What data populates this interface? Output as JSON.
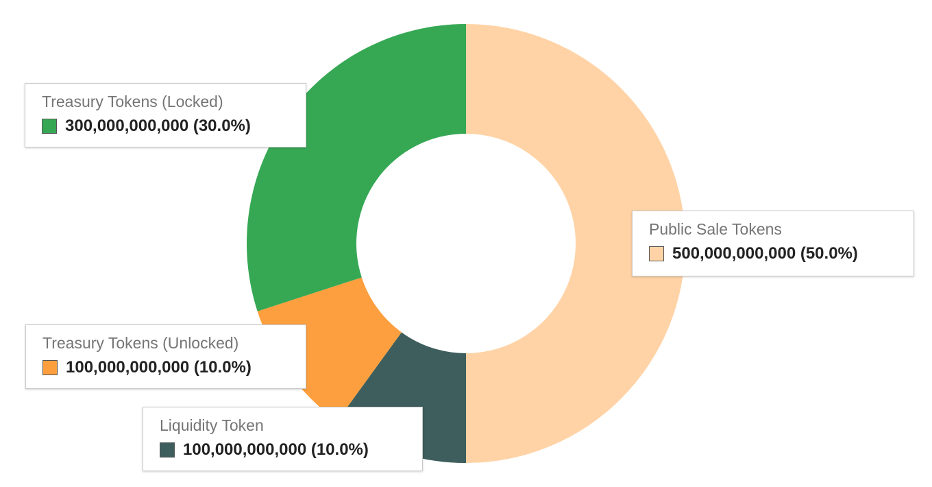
{
  "chart_data": {
    "type": "pie",
    "hole": true,
    "categories": [
      "Public Sale Tokens",
      "Liquidity Token",
      "Treasury Tokens (Unlocked)",
      "Treasury Tokens (Locked)"
    ],
    "values": [
      500000000000,
      100000000000,
      100000000000,
      300000000000
    ],
    "value_labels": [
      "500,000,000,000 (50.0%)",
      "100,000,000,000 (10.0%)",
      "100,000,000,000 (10.0%)",
      "300,000,000,000 (30.0%)"
    ],
    "colors": [
      "#ffd3a6",
      "#3d5e5c",
      "#fd9f3e",
      "#36a854"
    ],
    "title": "",
    "legend": "callouts"
  }
}
